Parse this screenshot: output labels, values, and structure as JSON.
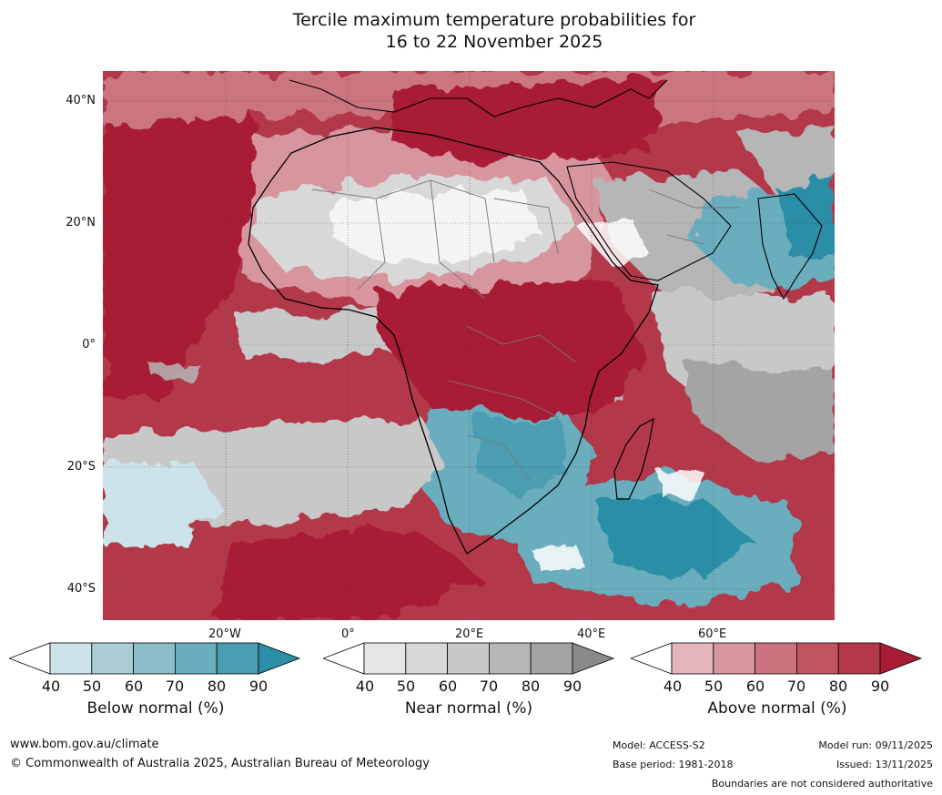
{
  "title": {
    "line1": "Tercile maximum temperature probabilities for",
    "line2": "16 to 22 November 2025"
  },
  "axes": {
    "lat_labels": [
      "40°N",
      "20°N",
      "0°",
      "20°S",
      "40°S"
    ],
    "lon_labels": [
      "20°W",
      "0°",
      "20°E",
      "40°E",
      "60°E"
    ]
  },
  "colorbars": [
    {
      "label": "Below normal (%)",
      "ticks": [
        "40",
        "50",
        "60",
        "70",
        "80",
        "90"
      ],
      "colors": [
        "#cde3ea",
        "#a9ccd6",
        "#8cbcc9",
        "#6aadbd",
        "#4b9db2",
        "#2a8ea6"
      ]
    },
    {
      "label": "Near normal (%)",
      "ticks": [
        "40",
        "50",
        "60",
        "70",
        "80",
        "90"
      ],
      "colors": [
        "#e6e6e6",
        "#d8d8d8",
        "#c8c8c8",
        "#b6b6b6",
        "#a4a4a4",
        "#8a8a8a"
      ]
    },
    {
      "label": "Above normal (%)",
      "ticks": [
        "40",
        "50",
        "60",
        "70",
        "80",
        "90"
      ],
      "colors": [
        "#e3b6bd",
        "#d7959e",
        "#cb747f",
        "#bf5662",
        "#b3394a",
        "#a81c36"
      ]
    }
  ],
  "footer": {
    "website": "www.bom.gov.au/climate",
    "copyright": "© Commonwealth of Australia 2025, Australian Bureau of Meteorology",
    "model": "Model: ACCESS-S2",
    "base_period": "Base period: 1981-2018",
    "model_run": "Model run: 09/11/2025",
    "issued": "Issued: 13/11/2025",
    "disclaimer": "Boundaries are not considered authoritative"
  }
}
